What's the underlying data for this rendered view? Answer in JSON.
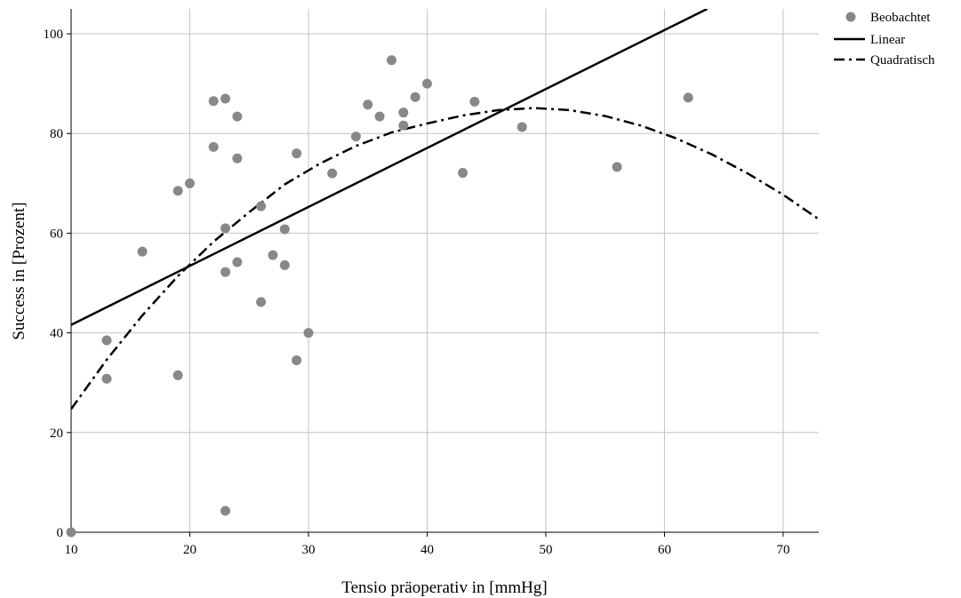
{
  "chart_data": {
    "type": "scatter",
    "xlabel": "Tensio präoperativ in [mmHg]",
    "ylabel": "Success in [Prozent]",
    "xlim": [
      10,
      73
    ],
    "ylim": [
      0,
      105
    ],
    "x_ticks": [
      10,
      20,
      30,
      40,
      50,
      60,
      70
    ],
    "y_ticks": [
      0,
      20,
      40,
      60,
      80,
      100
    ],
    "grid": true,
    "legend_position": "right",
    "legend": [
      "Beobachtet",
      "Linear",
      "Quadratisch"
    ],
    "observed": {
      "name": "Beobachtet",
      "color": "#888888",
      "points": [
        [
          10,
          0
        ],
        [
          13,
          38.5
        ],
        [
          13,
          30.8
        ],
        [
          16,
          56.3
        ],
        [
          19,
          68.5
        ],
        [
          19,
          31.5
        ],
        [
          20,
          70
        ],
        [
          22,
          86.5
        ],
        [
          22,
          77.3
        ],
        [
          23,
          87
        ],
        [
          23,
          61
        ],
        [
          23,
          52.2
        ],
        [
          23,
          4.3
        ],
        [
          24,
          83.4
        ],
        [
          24,
          75
        ],
        [
          24,
          54.2
        ],
        [
          26,
          65.4
        ],
        [
          26,
          46.2
        ],
        [
          27,
          55.6
        ],
        [
          28,
          60.8
        ],
        [
          28,
          53.6
        ],
        [
          29,
          76
        ],
        [
          29,
          34.5
        ],
        [
          30,
          40
        ],
        [
          32,
          72
        ],
        [
          34,
          79.4
        ],
        [
          35,
          85.8
        ],
        [
          36,
          83.4
        ],
        [
          37,
          94.7
        ],
        [
          38,
          84.2
        ],
        [
          38,
          81.6
        ],
        [
          39,
          87.3
        ],
        [
          40,
          90
        ],
        [
          43,
          72.1
        ],
        [
          44,
          86.4
        ],
        [
          48,
          81.3
        ],
        [
          56,
          73.3
        ],
        [
          62,
          87.2
        ]
      ]
    },
    "linear_fit": {
      "name": "Linear",
      "color": "#000000",
      "points": [
        [
          10,
          41.6
        ],
        [
          63.6,
          105
        ]
      ]
    },
    "quadratic_fit": {
      "name": "Quadratisch",
      "color": "#000000",
      "points": [
        [
          10,
          24.7
        ],
        [
          13,
          34.6
        ],
        [
          16,
          43.5
        ],
        [
          19,
          51.4
        ],
        [
          22,
          58.3
        ],
        [
          25,
          64.2
        ],
        [
          28,
          69.8
        ],
        [
          31,
          74
        ],
        [
          34,
          77.5
        ],
        [
          37,
          80.2
        ],
        [
          40,
          82
        ],
        [
          43,
          83.6
        ],
        [
          46,
          84.7
        ],
        [
          49,
          85.1
        ],
        [
          52,
          84.7
        ],
        [
          55,
          83.5
        ],
        [
          58,
          81.6
        ],
        [
          61,
          79
        ],
        [
          64,
          75.8
        ],
        [
          67,
          72
        ],
        [
          70,
          67.7
        ],
        [
          73,
          62.8
        ]
      ]
    }
  }
}
